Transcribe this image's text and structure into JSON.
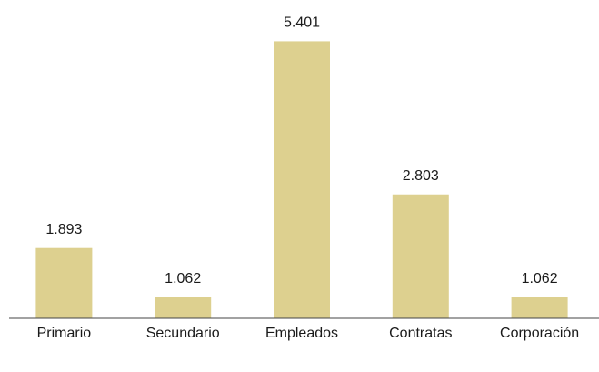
{
  "chart_data": {
    "type": "bar",
    "categories": [
      "Primario",
      "Secundario",
      "Empleados",
      "Contratas",
      "Corporación"
    ],
    "values": [
      1893,
      1062,
      5401,
      2803,
      1062
    ],
    "value_labels": [
      "1.893",
      "1.062",
      "5.401",
      "2.803",
      "1.062"
    ],
    "color": "#ddd08f",
    "ylim": [
      700,
      5500
    ]
  }
}
